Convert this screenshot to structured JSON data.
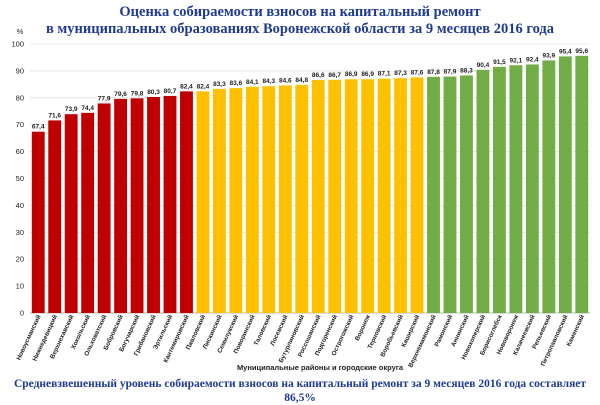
{
  "title_line1": "Оценка собираемости взносов на капитальный ремонт",
  "title_line2": "в муниципальных образованиях Воронежской области за 9 месяцев 2016 года",
  "footer": "Средневзвешенный уровень собираемости взносов на капитальный ремонт за 9 месяцев 2016 года составляет 86,5%",
  "chart_data": {
    "type": "bar",
    "title": "Оценка собираемости взносов на капитальный ремонт в муниципальных образованиях Воронежской области за 9 месяцев 2016 года",
    "xlabel": "Муниципальные районы и городские округа",
    "ylabel": "%",
    "ylim": [
      0,
      100
    ],
    "yticks": [
      0,
      10,
      20,
      30,
      40,
      50,
      60,
      70,
      80,
      90,
      100
    ],
    "grid": true,
    "colors": {
      "red": "#c00000",
      "yellow": "#ffc000",
      "green": "#70ad47"
    },
    "categories": [
      "Новоусманский",
      "Нижнедевицкий",
      "Верхнехавский",
      "Хохольский",
      "Ольховатский",
      "Бобровский",
      "Богучарский",
      "Грибановский",
      "Эртильский",
      "Кантемировский",
      "Павловский",
      "Лискинский",
      "Семилукский",
      "Поворинский",
      "Таловский",
      "Лосевский",
      "Бутурлиновский",
      "Россошанский",
      "Подгоренский",
      "Острогожский",
      "Воронеж",
      "Терновский",
      "Воробьевский",
      "Каширский",
      "Верхнемамонский",
      "Рамонский",
      "Аннинский",
      "Новохоперский",
      "Борисоглебск",
      "Нововоронеж",
      "Калачеевский",
      "Репьевский",
      "Петропавловский",
      "Каменский"
    ],
    "values": [
      67.4,
      71.6,
      73.9,
      74.4,
      77.9,
      79.6,
      79.8,
      80.3,
      80.7,
      82.4,
      82.4,
      83.3,
      83.6,
      84.1,
      84.3,
      84.6,
      84.8,
      86.6,
      86.7,
      86.9,
      86.9,
      87.1,
      87.3,
      87.6,
      87.8,
      87.9,
      88.3,
      90.4,
      91.5,
      92.1,
      92.4,
      93.9,
      95.4,
      95.6
    ],
    "value_labels": [
      "67,4",
      "71,6",
      "73,9",
      "74,4",
      "77,9",
      "79,6",
      "79,8",
      "80,3",
      "80,7",
      "82,4",
      "82,4",
      "83,3",
      "83,6",
      "84,1",
      "84,3",
      "84,6",
      "84,8",
      "86,6",
      "86,7",
      "86,9",
      "86,9",
      "87,1",
      "87,3",
      "87,6",
      "87,8",
      "87,9",
      "88,3",
      "90,4",
      "91,5",
      "92,1",
      "92,4",
      "93,9",
      "95,4",
      "95,6"
    ],
    "bar_colors": [
      "red",
      "red",
      "red",
      "red",
      "red",
      "red",
      "red",
      "red",
      "red",
      "red",
      "yellow",
      "yellow",
      "yellow",
      "yellow",
      "yellow",
      "yellow",
      "yellow",
      "yellow",
      "yellow",
      "yellow",
      "yellow",
      "yellow",
      "yellow",
      "yellow",
      "green",
      "green",
      "green",
      "green",
      "green",
      "green",
      "green",
      "green",
      "green",
      "green"
    ]
  }
}
